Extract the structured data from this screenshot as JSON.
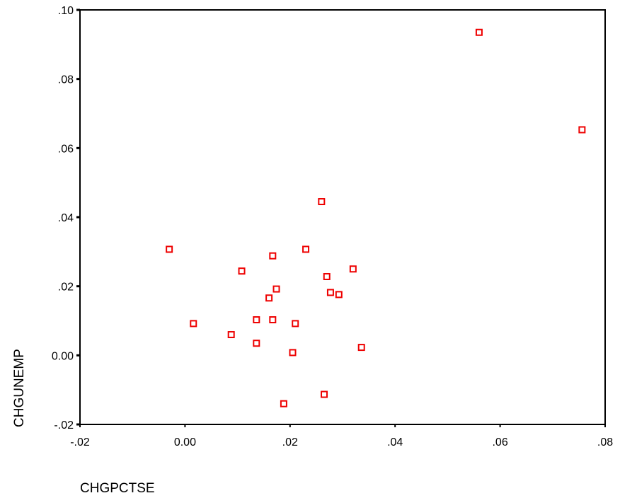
{
  "chart_data": {
    "type": "scatter",
    "title": "",
    "xlabel": "CHGPCTSE",
    "ylabel": "CHGUNEMP",
    "xlim": [
      -0.02,
      0.08
    ],
    "ylim": [
      -0.02,
      0.1
    ],
    "x_ticks": [
      -0.02,
      0.0,
      0.02,
      0.04,
      0.06,
      0.08
    ],
    "x_tick_labels": [
      "-.02",
      "0.00",
      ".02",
      ".04",
      ".06",
      ".08"
    ],
    "y_ticks": [
      -0.02,
      0.0,
      0.02,
      0.04,
      0.06,
      0.08,
      0.1
    ],
    "y_tick_labels": [
      "-.02",
      "0.00",
      ".02",
      ".04",
      ".06",
      ".08",
      ".10"
    ],
    "grid": false,
    "marker": "hollow-square",
    "marker_color": "#ee0000",
    "points": [
      {
        "x": 0.056,
        "y": 0.0935
      },
      {
        "x": 0.0756,
        "y": 0.0653
      },
      {
        "x": 0.026,
        "y": 0.0445
      },
      {
        "x": -0.003,
        "y": 0.0307
      },
      {
        "x": 0.023,
        "y": 0.0307
      },
      {
        "x": 0.0167,
        "y": 0.0288
      },
      {
        "x": 0.0108,
        "y": 0.0244
      },
      {
        "x": 0.032,
        "y": 0.025
      },
      {
        "x": 0.027,
        "y": 0.0228
      },
      {
        "x": 0.0174,
        "y": 0.0192
      },
      {
        "x": 0.0277,
        "y": 0.0182
      },
      {
        "x": 0.0293,
        "y": 0.0176
      },
      {
        "x": 0.016,
        "y": 0.0166
      },
      {
        "x": 0.0136,
        "y": 0.0103
      },
      {
        "x": 0.0167,
        "y": 0.0103
      },
      {
        "x": 0.0016,
        "y": 0.0092
      },
      {
        "x": 0.021,
        "y": 0.0092
      },
      {
        "x": 0.0088,
        "y": 0.006
      },
      {
        "x": 0.0136,
        "y": 0.0035
      },
      {
        "x": 0.0336,
        "y": 0.0023
      },
      {
        "x": 0.0205,
        "y": 0.0008
      },
      {
        "x": 0.0265,
        "y": -0.0113
      },
      {
        "x": 0.0188,
        "y": -0.014
      }
    ]
  }
}
